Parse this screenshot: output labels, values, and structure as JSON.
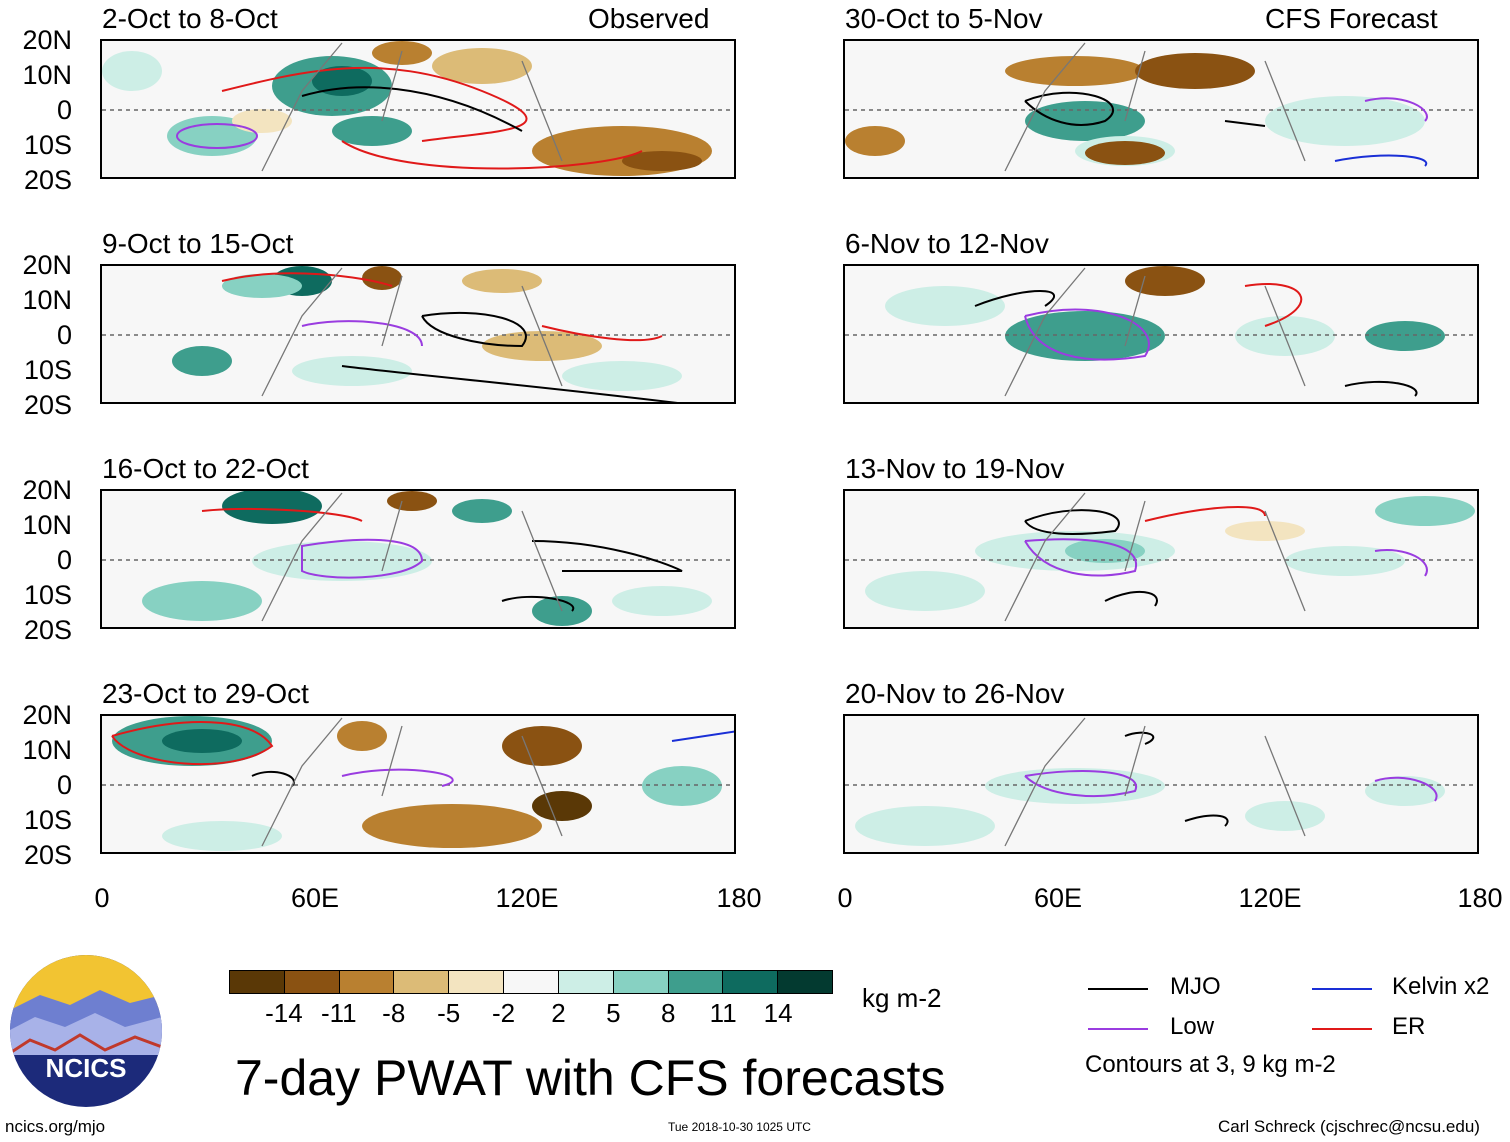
{
  "panels_left": [
    {
      "title": "2-Oct to 8-Oct",
      "right_label": "Observed"
    },
    {
      "title": "9-Oct to 15-Oct",
      "right_label": ""
    },
    {
      "title": "16-Oct to 22-Oct",
      "right_label": ""
    },
    {
      "title": "23-Oct to 29-Oct",
      "right_label": ""
    }
  ],
  "panels_right": [
    {
      "title": "30-Oct to 5-Nov",
      "right_label": "CFS Forecast"
    },
    {
      "title": "6-Nov to 12-Nov",
      "right_label": ""
    },
    {
      "title": "13-Nov to 19-Nov",
      "right_label": ""
    },
    {
      "title": "20-Nov to 26-Nov",
      "right_label": ""
    }
  ],
  "lat_labels": [
    "20N",
    "10N",
    "0",
    "10S",
    "20S"
  ],
  "lon_labels": [
    "0",
    "60E",
    "120E",
    "180"
  ],
  "colorbar": {
    "colors": [
      "#5a3806",
      "#8a5212",
      "#b98030",
      "#dcbb77",
      "#f3e4c0",
      "#f7f7f7",
      "#cdeee6",
      "#87d1c2",
      "#3e9e8d",
      "#0e6b5f",
      "#033a30"
    ],
    "ticks": [
      "-14",
      "-11",
      "-8",
      "-5",
      "-2",
      "2",
      "5",
      "8",
      "11",
      "14"
    ],
    "unit": "kg m-2"
  },
  "main_title": "7-day PWAT with CFS forecasts",
  "legend": {
    "items": [
      {
        "label": "MJO",
        "color": "#000000"
      },
      {
        "label": "Kelvin x2",
        "color": "#1a2fd6"
      },
      {
        "label": "Low",
        "color": "#9a3ce0"
      },
      {
        "label": "ER",
        "color": "#e01919"
      }
    ],
    "note": "Contours at 3, 9 kg m-2"
  },
  "logo": {
    "text": "NCICS"
  },
  "footer": {
    "left": "ncics.org/mjo",
    "center": "Tue 2018-10-30 1025 UTC",
    "right": "Carl Schreck (cjschrec@ncsu.edu)"
  }
}
